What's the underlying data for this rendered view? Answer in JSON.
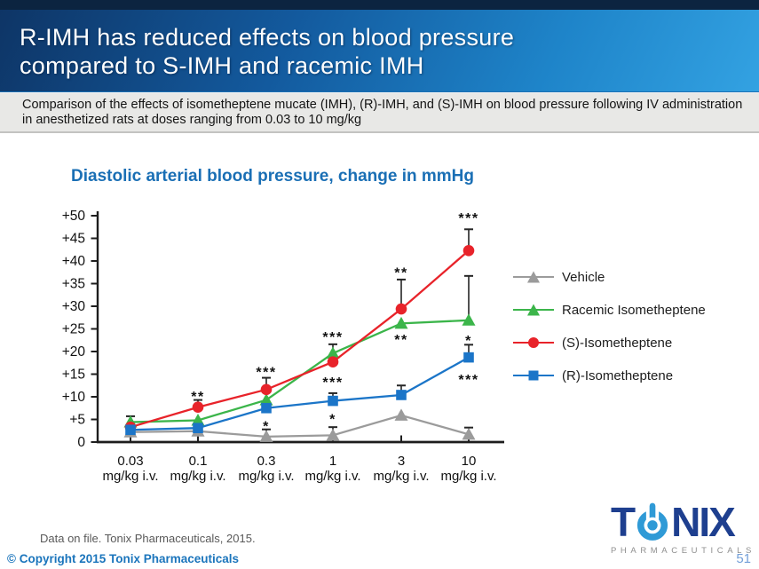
{
  "slide": {
    "title_line1": "R-IMH has reduced effects on blood pressure",
    "title_line2": "compared to S-IMH and racemic IMH",
    "subtitle": "Comparison of the effects of isometheptene mucate (IMH), (R)-IMH, and (S)-IMH on blood pressure following IV administration in anesthetized rats at doses ranging from 0.03 to 10 mg/kg",
    "footnote": "Data on file. Tonix Pharmaceuticals, 2015.",
    "copyright": "© Copyright 2015 Tonix Pharmaceuticals",
    "page_number": "51",
    "logo": {
      "part1": "T",
      "part2": "N",
      "part3": "IX",
      "icon": "power-button-icon",
      "brand_sub": "PHARMACEUTICALS"
    }
  },
  "colors": {
    "accent_blue": "#1b75bc",
    "chart_title_blue": "#1a6fb5",
    "logo_navy": "#1e3f8f",
    "logo_light_blue": "#2f9ad6",
    "page_number_blue": "#74a0d8",
    "axis_black": "#1d1d1d"
  },
  "chart_data": {
    "type": "line",
    "title": "Diastolic arterial blood pressure, change in mmHg",
    "x_categories": [
      "0.03",
      "0.1",
      "0.3",
      "1",
      "3",
      "10"
    ],
    "x_unit": "mg/kg i.v.",
    "ylabel": "change in mmHg",
    "ylim": [
      0,
      50
    ],
    "ytick_step": 5,
    "ytick_labels": [
      "0",
      "+5",
      "+10",
      "+15",
      "+20",
      "+25",
      "+30",
      "+35",
      "+40",
      "+45",
      "+50"
    ],
    "grid": false,
    "legend_position": "right",
    "series": [
      {
        "name": "Vehicle",
        "color": "#9b9b9b",
        "marker": "triangle",
        "values": [
          2.2,
          2.4,
          1.2,
          1.5,
          5.9,
          1.7
        ],
        "err_up": [
          0,
          0,
          1.6,
          1.8,
          0,
          1.5
        ]
      },
      {
        "name": "Racemic Isometheptene",
        "color": "#3bb54a",
        "marker": "triangle",
        "values": [
          4.4,
          4.8,
          9.3,
          19.6,
          26.2,
          26.9
        ],
        "err_up": [
          1.3,
          0,
          0,
          2.0,
          0,
          9.8
        ]
      },
      {
        "name": "(S)-Isometheptene",
        "color": "#e8232a",
        "marker": "circle",
        "values": [
          3.3,
          7.7,
          11.6,
          17.7,
          29.4,
          42.3
        ],
        "err_up": [
          0,
          1.6,
          2.6,
          0,
          6.5,
          4.7
        ]
      },
      {
        "name": "(R)-Isometheptene",
        "color": "#1b75c8",
        "marker": "square",
        "values": [
          2.7,
          3.1,
          7.5,
          9.1,
          10.4,
          18.7
        ],
        "err_up": [
          0,
          0,
          0,
          1.7,
          2.1,
          2.8
        ]
      }
    ],
    "annotations": [
      {
        "x_index": 1,
        "symbol": "**",
        "y": 11.2
      },
      {
        "x_index": 2,
        "symbol": "***",
        "y": 16.6
      },
      {
        "x_index": 2,
        "symbol": "*",
        "y": 4.6
      },
      {
        "x_index": 3,
        "symbol": "***",
        "y": 24.3
      },
      {
        "x_index": 3,
        "symbol": "***",
        "y": 14.3
      },
      {
        "x_index": 3,
        "symbol": "*",
        "y": 6.2
      },
      {
        "x_index": 4,
        "symbol": "**",
        "y": 38.5
      },
      {
        "x_index": 4,
        "symbol": "**",
        "y": 23.7
      },
      {
        "x_index": 5,
        "symbol": "***",
        "y": 50.6
      },
      {
        "x_index": 5,
        "symbol": "*",
        "y": 23.5
      },
      {
        "x_index": 5,
        "symbol": "***",
        "y": 14.9
      }
    ]
  }
}
